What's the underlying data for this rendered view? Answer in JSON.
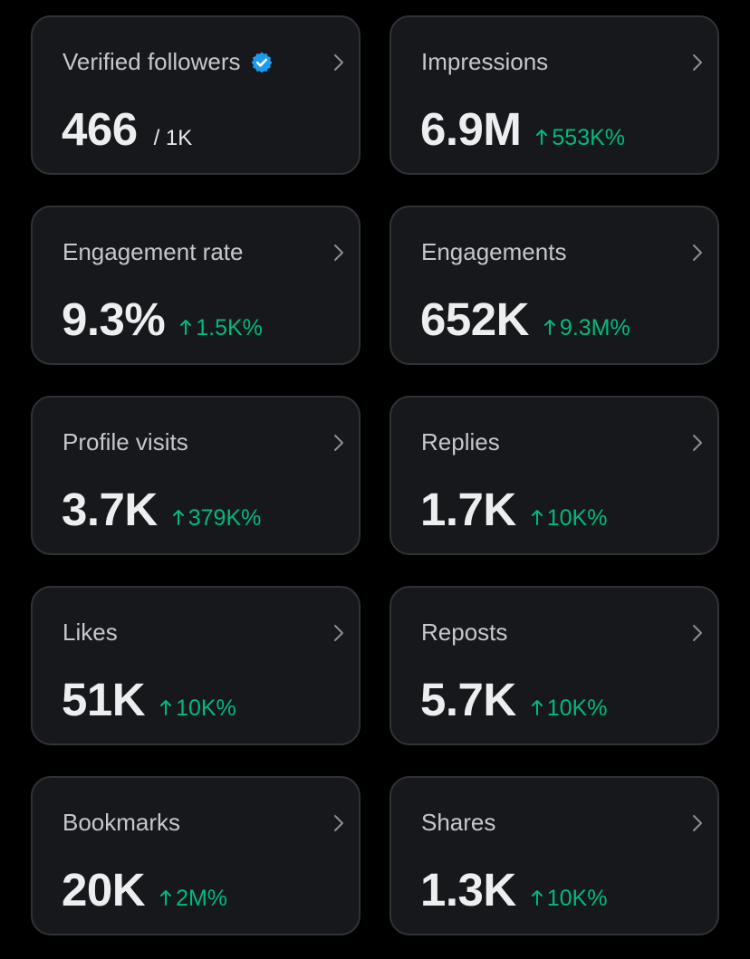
{
  "colors": {
    "background": "#000000",
    "card_background": "#16181c",
    "card_border": "#2f3336",
    "positive_change": "#00ba7c",
    "verified_badge": "#1d9bf0"
  },
  "metrics": [
    {
      "label": "Verified followers",
      "value": "466",
      "goal": "/ 1K",
      "icon": "verified-badge-icon"
    },
    {
      "label": "Impressions",
      "value": "6.9M",
      "change": "553K%"
    },
    {
      "label": "Engagement rate",
      "value": "9.3%",
      "change": "1.5K%"
    },
    {
      "label": "Engagements",
      "value": "652K",
      "change": "9.3M%"
    },
    {
      "label": "Profile visits",
      "value": "3.7K",
      "change": "379K%"
    },
    {
      "label": "Replies",
      "value": "1.7K",
      "change": "10K%"
    },
    {
      "label": "Likes",
      "value": "51K",
      "change": "10K%"
    },
    {
      "label": "Reposts",
      "value": "5.7K",
      "change": "10K%"
    },
    {
      "label": "Bookmarks",
      "value": "20K",
      "change": "2M%"
    },
    {
      "label": "Shares",
      "value": "1.3K",
      "change": "10K%"
    }
  ]
}
